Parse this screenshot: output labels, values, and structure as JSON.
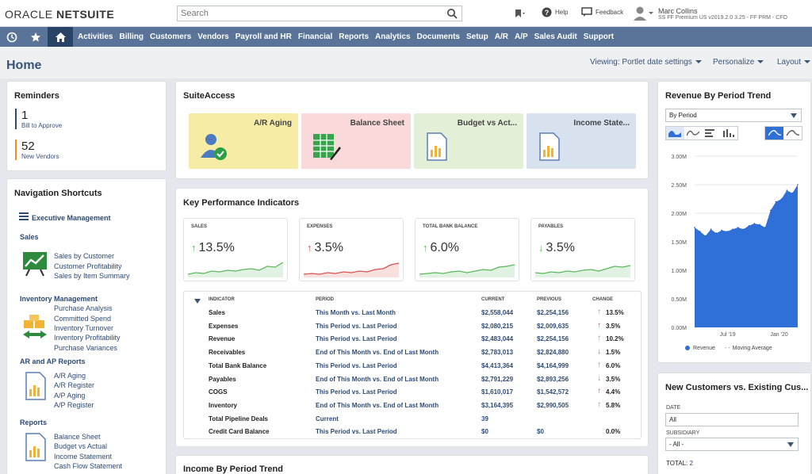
{
  "app": {
    "logo_prefix": "ORACLE ",
    "logo_name": "NETSUITE"
  },
  "topbar": {
    "search_placeholder": "Search",
    "help_label": "Help",
    "feedback_label": "Feedback",
    "user_name": "Marc Collins",
    "user_role": "SS FF Premium US v2019.2.0 3.25 - FF PRM - CFO"
  },
  "nav": {
    "items": [
      "Activities",
      "Billing",
      "Customers",
      "Vendors",
      "Payroll and HR",
      "Financial",
      "Reports",
      "Analytics",
      "Documents",
      "Setup",
      "A/R",
      "A/P",
      "Sales Audit",
      "Support"
    ]
  },
  "page": {
    "title": "Home",
    "viewing_label": "Viewing: Portlet date settings",
    "personalize_label": "Personalize",
    "layout_label": "Layout"
  },
  "reminders": {
    "title": "Reminders",
    "items": [
      {
        "count": "1",
        "label": "Bill to Approve",
        "color": "#2d4a75"
      },
      {
        "count": "52",
        "label": "New Vendors",
        "color": "#e8912d"
      }
    ]
  },
  "nav_shortcuts": {
    "title": "Navigation Shortcuts",
    "exec_label": "Executive Management",
    "sales": {
      "title": "Sales",
      "links": [
        "Sales by Customer",
        "Customer Profitability",
        "Sales by Item Summary"
      ]
    },
    "inventory": {
      "title": "Inventory Management",
      "links": [
        "Purchase Analysis",
        "Committed Spend",
        "Inventory Turnover",
        "Inventory Profitability",
        "Purchase Variances"
      ]
    },
    "arap": {
      "title": "AR and AP Reports",
      "links": [
        "A/R Aging",
        "A/R Register",
        "A/P Aging",
        "A/P Register"
      ]
    },
    "reports": {
      "title": "Reports",
      "links": [
        "Balance Sheet",
        "Budget vs Actual",
        "Income Statement",
        "Cash Flow Statement"
      ]
    }
  },
  "suiteaccess": {
    "title": "SuiteAccess",
    "tiles": [
      {
        "label": "A/R Aging",
        "bg": "#f7eca6"
      },
      {
        "label": "Balance Sheet",
        "bg": "#f9d9d9"
      },
      {
        "label": "Budget vs Act...",
        "bg": "#e4efd8"
      },
      {
        "label": "Income State...",
        "bg": "#d8e2ee"
      }
    ]
  },
  "kpi": {
    "title": "Key Performance Indicators",
    "cards": [
      {
        "label": "SALES",
        "value": "13.5%",
        "dir": "up",
        "color": "#5cb85c"
      },
      {
        "label": "EXPENSES",
        "value": "3.5%",
        "dir": "up-red",
        "color": "#d9534f"
      },
      {
        "label": "TOTAL BANK BALANCE",
        "value": "6.0%",
        "dir": "up",
        "color": "#5cb85c"
      },
      {
        "label": "PAYABLES",
        "value": "3.5%",
        "dir": "down",
        "color": "#5cb85c"
      }
    ],
    "headers": {
      "indicator": "INDICATOR",
      "period": "PERIOD",
      "current": "CURRENT",
      "previous": "PREVIOUS",
      "change": "CHANGE"
    },
    "rows": [
      {
        "indicator": "Sales",
        "period": "This Month vs. Last Month",
        "current": "$2,558,044",
        "previous": "$2,254,156",
        "change": "13.5%",
        "arrow": "up-green"
      },
      {
        "indicator": "Expenses",
        "period": "This Period vs. Last Period",
        "current": "$2,080,215",
        "previous": "$2,009,635",
        "change": "3.5%",
        "arrow": "up-red"
      },
      {
        "indicator": "Revenue",
        "period": "This Period vs. Last Period",
        "current": "$2,483,044",
        "previous": "$2,254,156",
        "change": "10.2%",
        "arrow": "up-green"
      },
      {
        "indicator": "Receivables",
        "period": "End of This Month vs. End of Last Month",
        "current": "$2,783,013",
        "previous": "$2,824,880",
        "change": "1.5%",
        "arrow": "down-red"
      },
      {
        "indicator": "Total Bank Balance",
        "period": "This Period vs. Last Period",
        "current": "$4,413,364",
        "previous": "$4,164,999",
        "change": "6.0%",
        "arrow": "up-green"
      },
      {
        "indicator": "Payables",
        "period": "End of This Month vs. End of Last Month",
        "current": "$2,791,229",
        "previous": "$2,893,256",
        "change": "3.5%",
        "arrow": "down-green"
      },
      {
        "indicator": "COGS",
        "period": "This Period vs. Last Period",
        "current": "$1,610,017",
        "previous": "$1,542,572",
        "change": "4.4%",
        "arrow": "up-red"
      },
      {
        "indicator": "Inventory",
        "period": "End of This Month vs. End of Last Month",
        "current": "$3,164,395",
        "previous": "$2,990,505",
        "change": "5.8%",
        "arrow": "up-green"
      },
      {
        "indicator": "Total Pipeline Deals",
        "period": "Current",
        "current": "39",
        "previous": "",
        "change": "",
        "arrow": ""
      },
      {
        "indicator": "Credit Card Balance",
        "period": "This Period vs. Last Period",
        "current": "$0",
        "previous": "$0",
        "change": "0.0%",
        "arrow": ""
      }
    ]
  },
  "income_trend": {
    "title": "Income By Period Trend"
  },
  "revenue_trend": {
    "title": "Revenue By Period Trend",
    "select_value": "By Period",
    "legend_revenue": "Revenue",
    "legend_avg": "Moving Average"
  },
  "chart_data": {
    "type": "area",
    "title": "Revenue By Period Trend",
    "ylim": [
      0,
      3000000
    ],
    "y_ticks": [
      "0.00M",
      "0.50M",
      "1.00M",
      "1.50M",
      "2.00M",
      "2.50M",
      "3.00M"
    ],
    "x_ticks": [
      "Jul '19",
      "Jan '20"
    ],
    "series": [
      {
        "name": "Revenue",
        "values": [
          1.75,
          1.68,
          1.6,
          1.72,
          1.65,
          1.7,
          1.68,
          1.72,
          1.75,
          1.72,
          1.78,
          1.82,
          1.8,
          1.75,
          2.05,
          2.2,
          2.25,
          2.4,
          2.35,
          2.5
        ],
        "color": "#2e6fd8"
      }
    ]
  },
  "new_customers": {
    "title": "New Customers vs. Existing Cus...",
    "date_label": "DATE",
    "date_value": "All",
    "subsidiary_label": "SUBSIDIARY",
    "subsidiary_value": "- All -",
    "total_label": "TOTAL: ",
    "total_value": "2"
  }
}
